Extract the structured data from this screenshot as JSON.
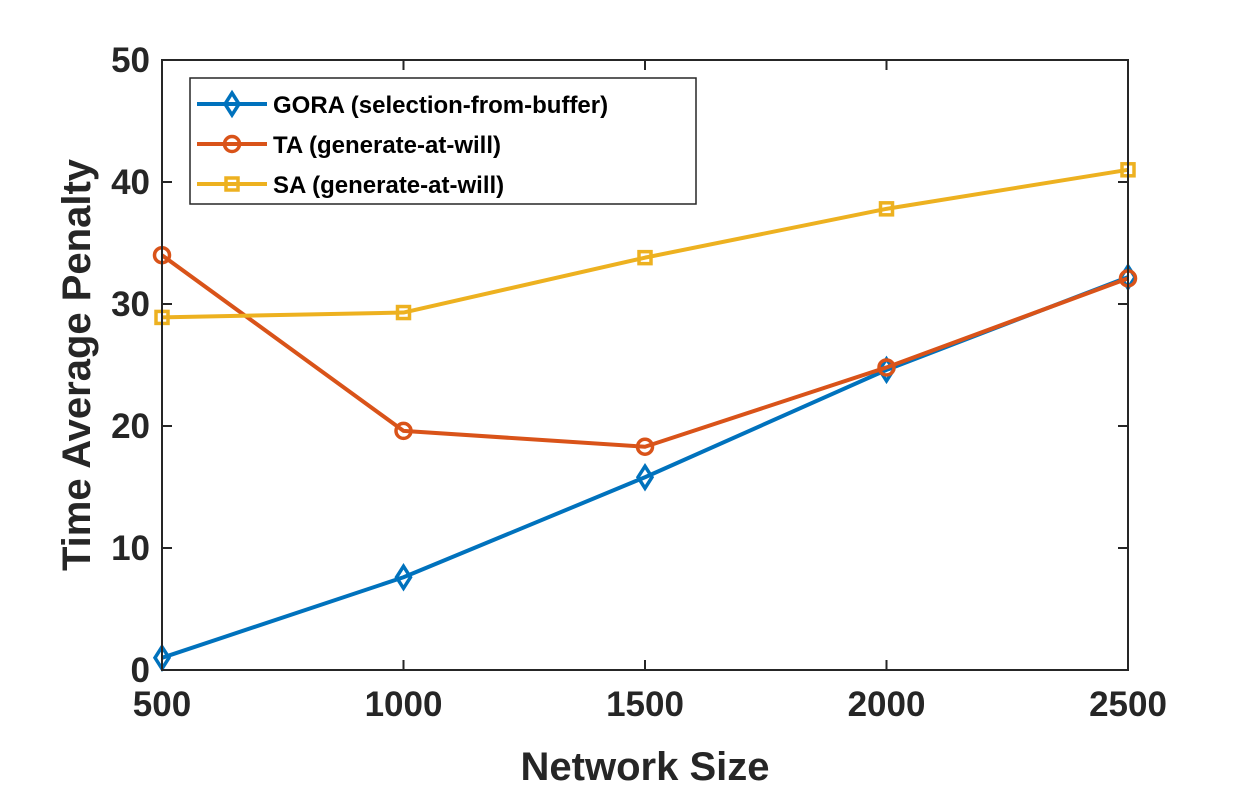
{
  "chart_data": {
    "type": "line",
    "title": "",
    "xlabel": "Network Size",
    "ylabel": "Time Average Penalty",
    "x": [
      500,
      1000,
      1500,
      2000,
      2500
    ],
    "xlim": [
      500,
      2500
    ],
    "ylim": [
      0,
      50
    ],
    "xticks": [
      500,
      1000,
      1500,
      2000,
      2500
    ],
    "yticks": [
      0,
      10,
      20,
      30,
      40,
      50
    ],
    "grid": false,
    "legend_position": "top-left",
    "series": [
      {
        "name": "GORA (selection-from-buffer)",
        "color": "#0072bd",
        "marker": "diamond",
        "values": [
          1.0,
          7.6,
          15.8,
          24.6,
          32.2
        ]
      },
      {
        "name": "TA (generate-at-will)",
        "color": "#d95319",
        "marker": "circle",
        "values": [
          34.0,
          19.6,
          18.3,
          24.8,
          32.1
        ]
      },
      {
        "name": "SA (generate-at-will)",
        "color": "#edb120",
        "marker": "square",
        "values": [
          28.9,
          29.3,
          33.8,
          37.8,
          41.0
        ]
      }
    ]
  }
}
